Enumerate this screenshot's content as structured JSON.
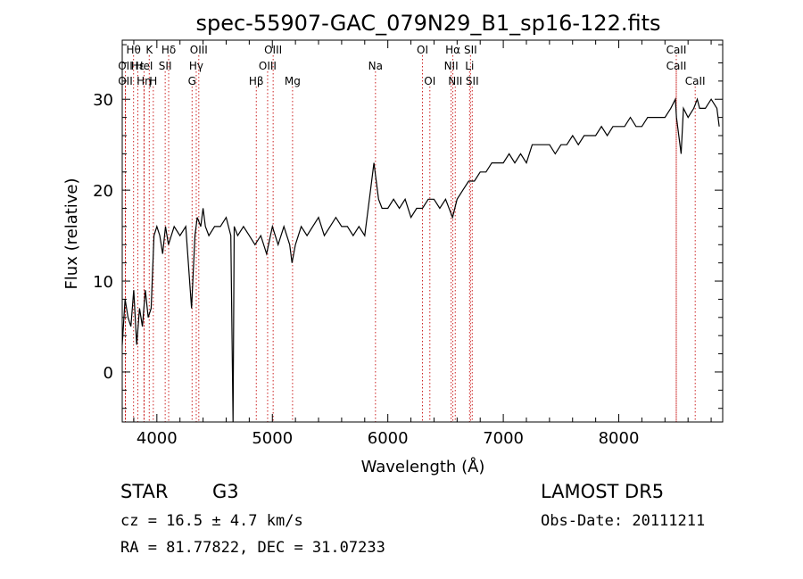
{
  "chart_data": {
    "type": "line",
    "title": "spec-55907-GAC_079N29_B1_sp16-122.fits",
    "xlabel": "Wavelength (Å)",
    "ylabel": "Flux (relative)",
    "xlim": [
      3700,
      8900
    ],
    "ylim": [
      -5.5,
      36.5
    ],
    "x_ticks": [
      "4000",
      "5000",
      "6000",
      "7000",
      "8000"
    ],
    "x_tick_values": [
      4000,
      5000,
      6000,
      7000,
      8000
    ],
    "y_ticks": [
      "0",
      "10",
      "20",
      "30"
    ],
    "y_tick_values": [
      0,
      10,
      20,
      30
    ],
    "grid": false,
    "series": [
      {
        "x": [
          3700,
          3725,
          3750,
          3775,
          3800,
          3825,
          3850,
          3875,
          3900,
          3925,
          3950,
          3975,
          4000,
          4025,
          4050,
          4075,
          4100,
          4150,
          4200,
          4250,
          4300,
          4330,
          4350,
          4380,
          4400,
          4420,
          4450,
          4500,
          4550,
          4600,
          4640,
          4660,
          4670,
          4700,
          4750,
          4800,
          4850,
          4900,
          4950,
          5000,
          5050,
          5100,
          5150,
          5170,
          5200,
          5250,
          5300,
          5350,
          5400,
          5450,
          5500,
          5550,
          5600,
          5650,
          5700,
          5750,
          5800,
          5850,
          5880,
          5890,
          5900,
          5920,
          5950,
          6000,
          6050,
          6100,
          6150,
          6200,
          6250,
          6300,
          6350,
          6400,
          6450,
          6500,
          6560,
          6600,
          6650,
          6700,
          6750,
          6800,
          6850,
          6900,
          6950,
          7000,
          7050,
          7100,
          7150,
          7200,
          7250,
          7300,
          7350,
          7400,
          7450,
          7500,
          7550,
          7600,
          7650,
          7700,
          7750,
          7800,
          7850,
          7900,
          7950,
          8000,
          8050,
          8100,
          8150,
          8200,
          8250,
          8300,
          8350,
          8400,
          8450,
          8490,
          8500,
          8520,
          8540,
          8560,
          8600,
          8650,
          8680,
          8700,
          8750,
          8800,
          8850,
          8870
        ],
        "y": [
          3,
          8,
          6,
          5,
          9,
          3,
          7,
          5,
          9,
          6,
          7,
          15,
          16,
          15,
          13,
          16,
          14,
          16,
          15,
          16,
          7,
          15,
          17,
          16,
          18,
          16,
          15,
          16,
          16,
          17,
          15,
          -5.5,
          16,
          15,
          16,
          15,
          14,
          15,
          13,
          16,
          14,
          16,
          14,
          12,
          14,
          16,
          15,
          16,
          17,
          15,
          16,
          17,
          16,
          16,
          15,
          16,
          15,
          20,
          23,
          22,
          21,
          19,
          18,
          18,
          19,
          18,
          19,
          17,
          18,
          18,
          19,
          19,
          18,
          19,
          17,
          19,
          20,
          21,
          21,
          22,
          22,
          23,
          23,
          23,
          24,
          23,
          24,
          23,
          25,
          25,
          25,
          25,
          24,
          25,
          25,
          26,
          25,
          26,
          26,
          26,
          27,
          26,
          27,
          27,
          27,
          28,
          27,
          27,
          28,
          28,
          28,
          28,
          29,
          30,
          28,
          26,
          24,
          29,
          28,
          29,
          30,
          29,
          29,
          30,
          29,
          27
        ]
      }
    ],
    "lines": [
      {
        "label": "Hθ",
        "x": 3798,
        "row": 0
      },
      {
        "label": "OII",
        "x": 3727,
        "row": 1
      },
      {
        "label": "OII",
        "x": 3727,
        "row": 2
      },
      {
        "label": "Hε",
        "x": 3835,
        "row": 1
      },
      {
        "label": "Hη",
        "x": 3889,
        "row": 2
      },
      {
        "label": "K",
        "x": 3934,
        "row": 0
      },
      {
        "label": "HeI",
        "x": 3889,
        "row": 1
      },
      {
        "label": "H",
        "x": 3969,
        "row": 2
      },
      {
        "label": "Hδ",
        "x": 4102,
        "row": 0
      },
      {
        "label": "SII",
        "x": 4072,
        "row": 1
      },
      {
        "label": "OIII",
        "x": 4363,
        "row": 0
      },
      {
        "label": "Hγ",
        "x": 4341,
        "row": 1
      },
      {
        "label": "G",
        "x": 4305,
        "row": 2
      },
      {
        "label": "OIII",
        "x": 5007,
        "row": 0
      },
      {
        "label": "OIII",
        "x": 4959,
        "row": 1
      },
      {
        "label": "Hβ",
        "x": 4861,
        "row": 2
      },
      {
        "label": "Mg",
        "x": 5175,
        "row": 2
      },
      {
        "label": "Na",
        "x": 5893,
        "row": 1
      },
      {
        "label": "OI",
        "x": 6300,
        "row": 0
      },
      {
        "label": "OI",
        "x": 6364,
        "row": 2
      },
      {
        "label": "Hα",
        "x": 6563,
        "row": 0
      },
      {
        "label": "SII",
        "x": 6716,
        "row": 0
      },
      {
        "label": "NII",
        "x": 6548,
        "row": 1
      },
      {
        "label": "Li",
        "x": 6708,
        "row": 1
      },
      {
        "label": "NII",
        "x": 6584,
        "row": 2
      },
      {
        "label": "SII",
        "x": 6731,
        "row": 2
      },
      {
        "label": "CaII",
        "x": 8498,
        "row": 0
      },
      {
        "label": "CaII",
        "x": 8498,
        "row": 1
      },
      {
        "label": "CaII",
        "x": 8662,
        "row": 2
      }
    ]
  },
  "info": {
    "class": "STAR",
    "subclass": "G3",
    "survey": "LAMOST DR5",
    "cz": "cz = 16.5 ± 4.7 km/s",
    "obsdate": "Obs-Date: 20111211",
    "radec": "RA =  81.77822, DEC =  31.07233"
  }
}
